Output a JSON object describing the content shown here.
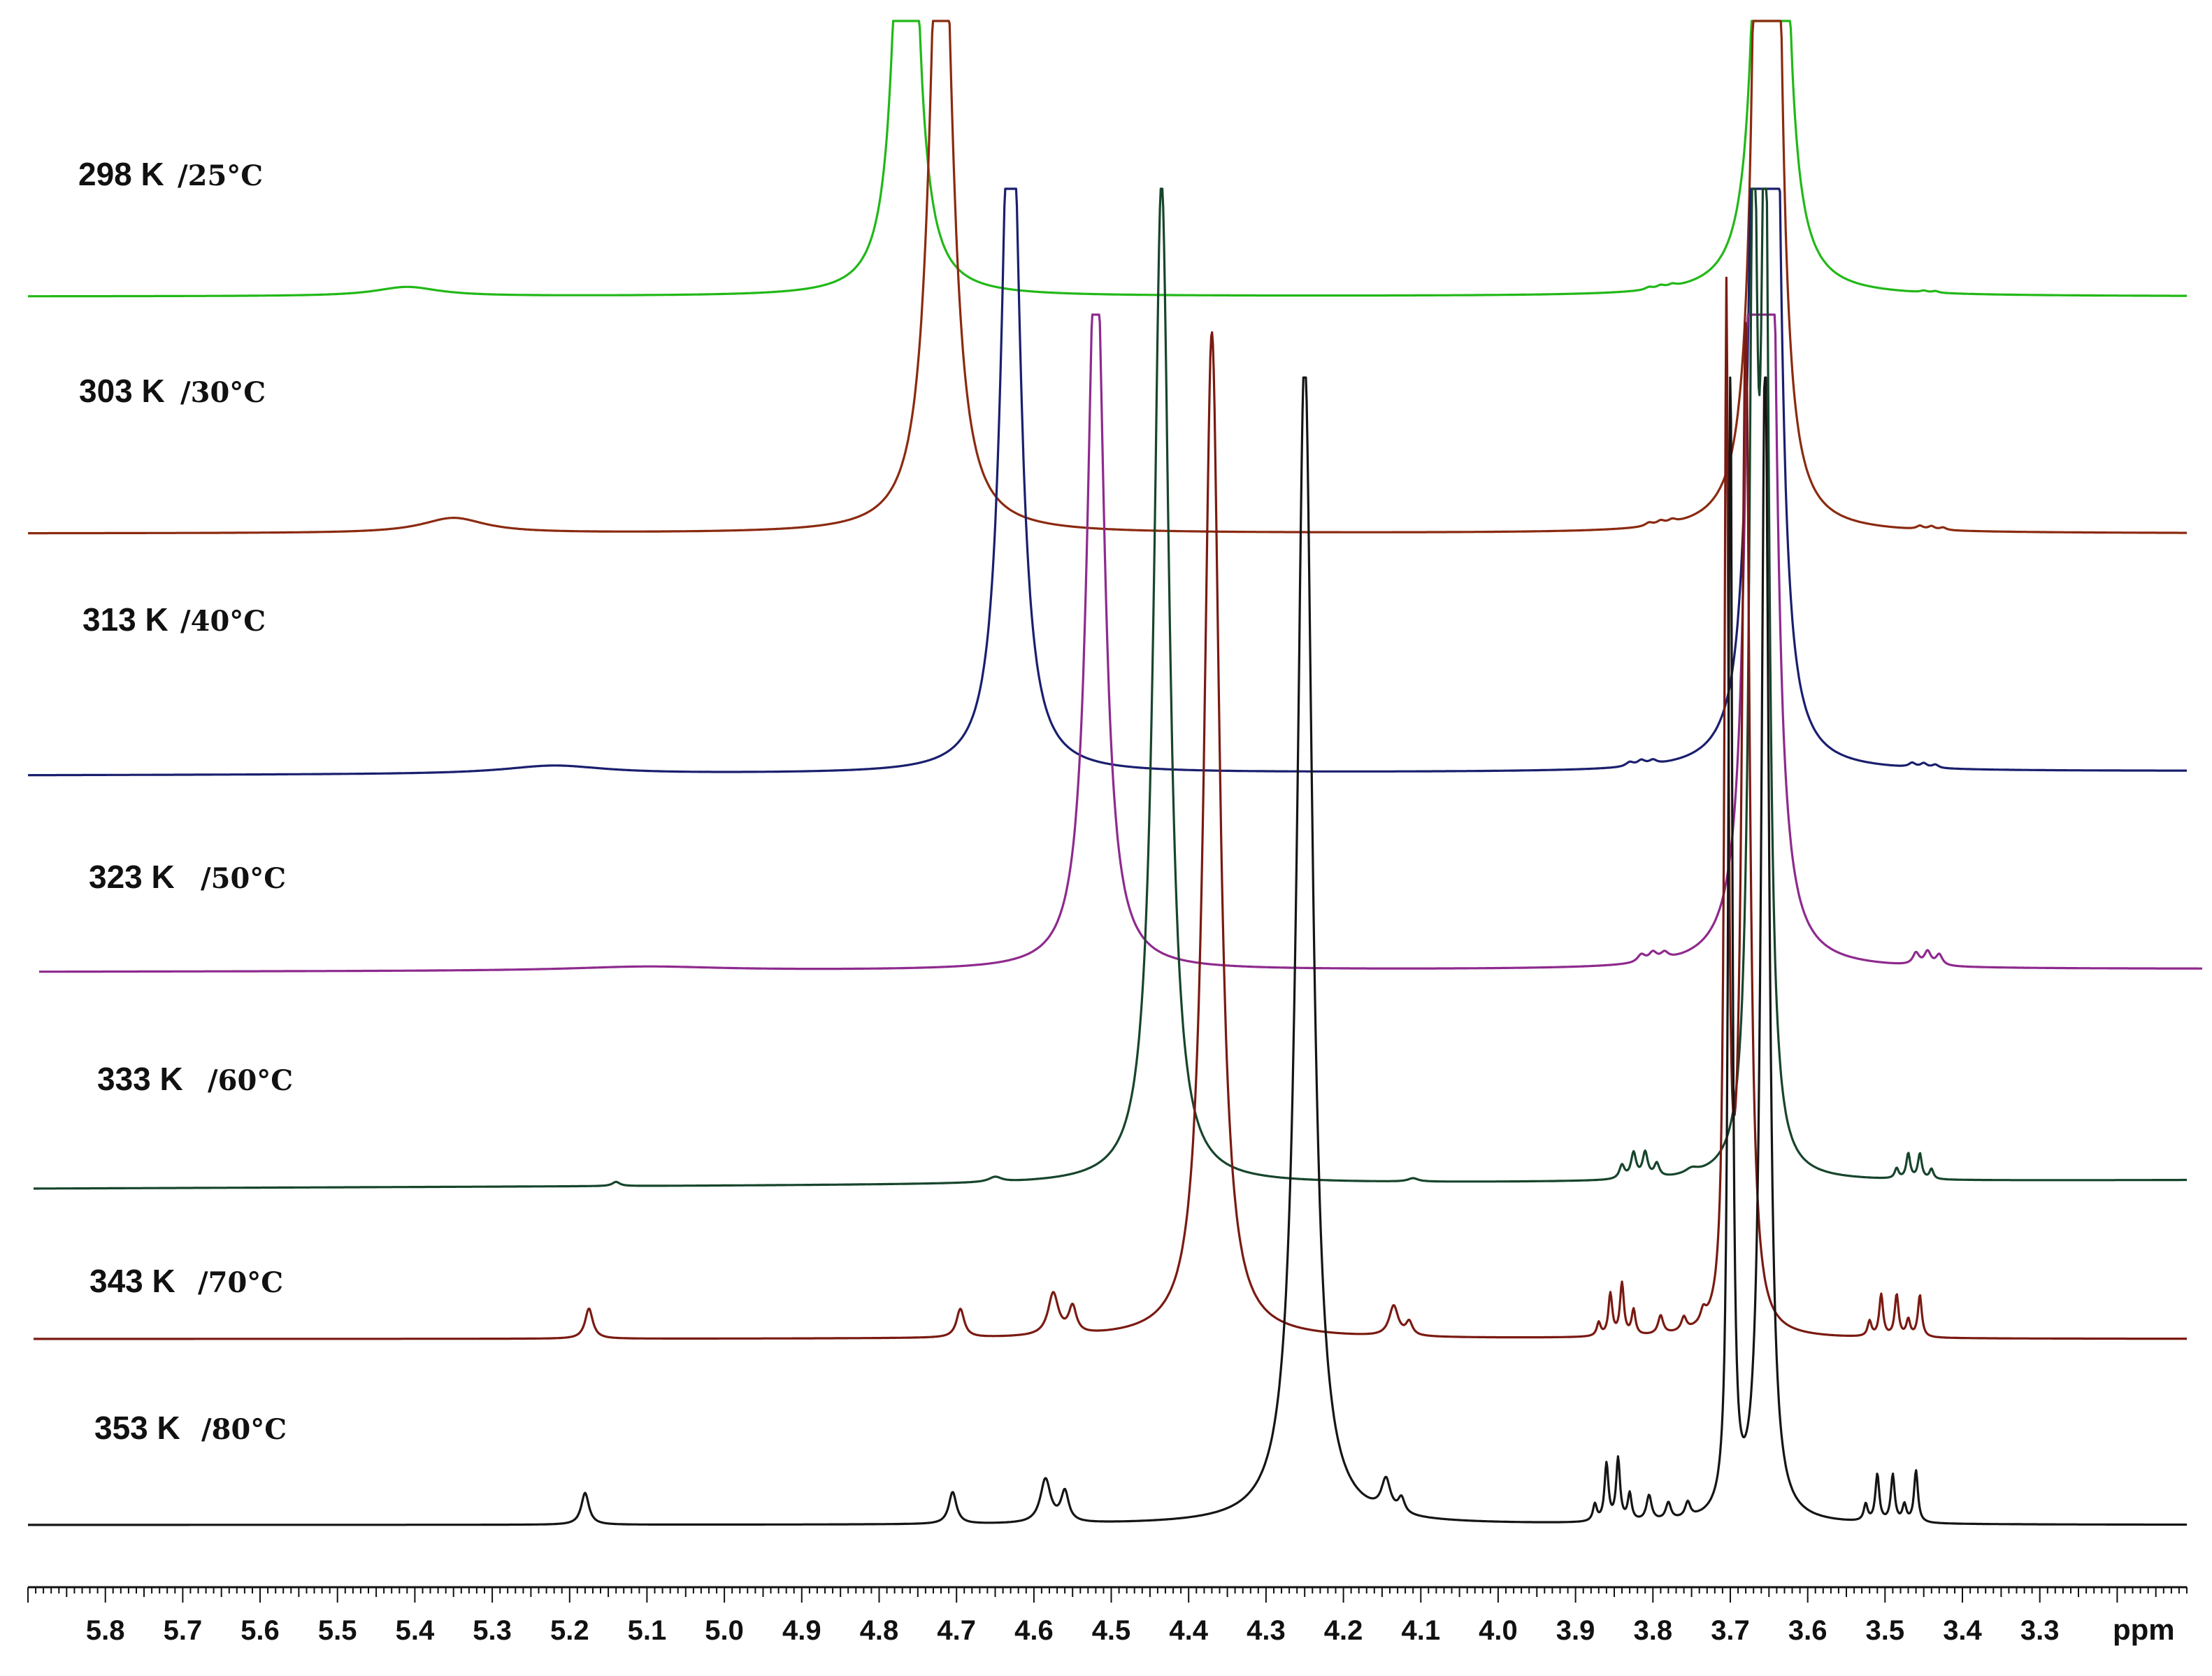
{
  "chart_data": {
    "type": "line",
    "title": "",
    "xlabel": "ppm",
    "ylabel": "",
    "xlim": [
      5.9,
      3.11
    ],
    "x_reversed": true,
    "grid": false,
    "legend": "temperature labels at left of each trace",
    "x_ticks": [
      "5.8",
      "5.7",
      "5.6",
      "5.5",
      "5.4",
      "5.3",
      "5.2",
      "5.1",
      "5.0",
      "4.9",
      "4.8",
      "4.7",
      "4.6",
      "4.5",
      "4.4",
      "4.3",
      "4.2",
      "4.1",
      "4.0",
      "3.9",
      "3.8",
      "3.7",
      "3.6",
      "3.5",
      "3.4",
      "3.3"
    ],
    "peak_height_unit": "relative intensity (offset stacked traces, tall peaks clipped)",
    "series": [
      {
        "name": "298 K",
        "label_k": "298 K",
        "label_c": "/25°C",
        "color": "#22b818",
        "peaks": [
          {
            "ppm": 5.41,
            "height": 0.11,
            "width": 0.05
          },
          {
            "ppm": 4.765,
            "height": 9.0,
            "width": 0.013
          },
          {
            "ppm": 3.805,
            "height": 0.03,
            "width": 0.006
          },
          {
            "ppm": 3.79,
            "height": 0.035,
            "width": 0.006
          },
          {
            "ppm": 3.775,
            "height": 0.03,
            "width": 0.006
          },
          {
            "ppm": 3.655,
            "height": 12.0,
            "width": 0.009
          },
          {
            "ppm": 3.64,
            "height": 12.0,
            "width": 0.009
          },
          {
            "ppm": 3.45,
            "height": 0.02,
            "width": 0.005
          },
          {
            "ppm": 3.435,
            "height": 0.02,
            "width": 0.005
          }
        ]
      },
      {
        "name": "303 K",
        "label_k": "303 K",
        "label_c": "/30°C",
        "color": "#8b2a10",
        "peaks": [
          {
            "ppm": 5.35,
            "height": 0.18,
            "width": 0.05
          },
          {
            "ppm": 4.72,
            "height": 9.0,
            "width": 0.016
          },
          {
            "ppm": 3.805,
            "height": 0.04,
            "width": 0.006
          },
          {
            "ppm": 3.79,
            "height": 0.045,
            "width": 0.006
          },
          {
            "ppm": 3.775,
            "height": 0.04,
            "width": 0.006
          },
          {
            "ppm": 3.66,
            "height": 12.0,
            "width": 0.009
          },
          {
            "ppm": 3.645,
            "height": 12.0,
            "width": 0.009
          },
          {
            "ppm": 3.455,
            "height": 0.04,
            "width": 0.005
          },
          {
            "ppm": 3.44,
            "height": 0.04,
            "width": 0.005
          },
          {
            "ppm": 3.425,
            "height": 0.03,
            "width": 0.005
          }
        ]
      },
      {
        "name": "313 K",
        "label_k": "313 K",
        "label_c": "/40°C",
        "color": "#1a1f6e",
        "peaks": [
          {
            "ppm": 5.22,
            "height": 0.1,
            "width": 0.08
          },
          {
            "ppm": 4.63,
            "height": 9.0,
            "width": 0.014
          },
          {
            "ppm": 3.83,
            "height": 0.05,
            "width": 0.006
          },
          {
            "ppm": 3.815,
            "height": 0.06,
            "width": 0.006
          },
          {
            "ppm": 3.8,
            "height": 0.05,
            "width": 0.006
          },
          {
            "ppm": 3.665,
            "height": 12.0,
            "width": 0.009
          },
          {
            "ppm": 3.645,
            "height": 12.0,
            "width": 0.009
          },
          {
            "ppm": 3.465,
            "height": 0.05,
            "width": 0.005
          },
          {
            "ppm": 3.45,
            "height": 0.05,
            "width": 0.005
          },
          {
            "ppm": 3.435,
            "height": 0.04,
            "width": 0.005
          }
        ]
      },
      {
        "name": "323 K",
        "label_k": "323 K",
        "label_c": "/50°C",
        "color": "#8e2a8e",
        "peaks": [
          {
            "ppm": 5.1,
            "height": 0.05,
            "width": 0.12
          },
          {
            "ppm": 4.52,
            "height": 9.0,
            "width": 0.013
          },
          {
            "ppm": 3.815,
            "height": 0.09,
            "width": 0.006
          },
          {
            "ppm": 3.8,
            "height": 0.1,
            "width": 0.006
          },
          {
            "ppm": 3.785,
            "height": 0.08,
            "width": 0.006
          },
          {
            "ppm": 3.67,
            "height": 12.0,
            "width": 0.009
          },
          {
            "ppm": 3.65,
            "height": 12.0,
            "width": 0.009
          },
          {
            "ppm": 3.46,
            "height": 0.14,
            "width": 0.005
          },
          {
            "ppm": 3.445,
            "height": 0.16,
            "width": 0.005
          },
          {
            "ppm": 3.43,
            "height": 0.13,
            "width": 0.005
          }
        ]
      },
      {
        "name": "333 K",
        "label_k": "333 K",
        "label_c": "/60°C",
        "color": "#17452c",
        "peaks": [
          {
            "ppm": 5.14,
            "height": 0.05,
            "width": 0.006
          },
          {
            "ppm": 4.65,
            "height": 0.06,
            "width": 0.01
          },
          {
            "ppm": 4.435,
            "height": 12.0,
            "width": 0.012
          },
          {
            "ppm": 4.11,
            "height": 0.04,
            "width": 0.008
          },
          {
            "ppm": 3.84,
            "height": 0.16,
            "width": 0.004
          },
          {
            "ppm": 3.825,
            "height": 0.3,
            "width": 0.004
          },
          {
            "ppm": 3.81,
            "height": 0.3,
            "width": 0.004
          },
          {
            "ppm": 3.795,
            "height": 0.16,
            "width": 0.004
          },
          {
            "ppm": 3.75,
            "height": 0.06,
            "width": 0.01
          },
          {
            "ppm": 3.67,
            "height": 12.0,
            "width": 0.006
          },
          {
            "ppm": 3.655,
            "height": 12.0,
            "width": 0.006
          },
          {
            "ppm": 3.485,
            "height": 0.12,
            "width": 0.003
          },
          {
            "ppm": 3.47,
            "height": 0.3,
            "width": 0.003
          },
          {
            "ppm": 3.455,
            "height": 0.3,
            "width": 0.003
          },
          {
            "ppm": 3.44,
            "height": 0.12,
            "width": 0.003
          }
        ]
      },
      {
        "name": "343 K",
        "label_k": "343 K",
        "label_c": "/70°C",
        "color": "#7a1a12",
        "peaks": [
          {
            "ppm": 5.175,
            "height": 0.36,
            "width": 0.006
          },
          {
            "ppm": 4.695,
            "height": 0.34,
            "width": 0.006
          },
          {
            "ppm": 4.575,
            "height": 0.5,
            "width": 0.008
          },
          {
            "ppm": 4.55,
            "height": 0.32,
            "width": 0.006
          },
          {
            "ppm": 4.37,
            "height": 12.0,
            "width": 0.012
          },
          {
            "ppm": 4.135,
            "height": 0.36,
            "width": 0.007
          },
          {
            "ppm": 4.115,
            "height": 0.16,
            "width": 0.005
          },
          {
            "ppm": 3.87,
            "height": 0.16,
            "width": 0.003
          },
          {
            "ppm": 3.855,
            "height": 0.5,
            "width": 0.003
          },
          {
            "ppm": 3.84,
            "height": 0.62,
            "width": 0.003
          },
          {
            "ppm": 3.825,
            "height": 0.3,
            "width": 0.003
          },
          {
            "ppm": 3.79,
            "height": 0.22,
            "width": 0.004
          },
          {
            "ppm": 3.76,
            "height": 0.16,
            "width": 0.004
          },
          {
            "ppm": 3.735,
            "height": 0.14,
            "width": 0.004
          },
          {
            "ppm": 3.705,
            "height": 12.0,
            "width": 0.003
          },
          {
            "ppm": 3.68,
            "height": 12.0,
            "width": 0.006
          },
          {
            "ppm": 3.52,
            "height": 0.18,
            "width": 0.003
          },
          {
            "ppm": 3.505,
            "height": 0.5,
            "width": 0.003
          },
          {
            "ppm": 3.485,
            "height": 0.5,
            "width": 0.003
          },
          {
            "ppm": 3.47,
            "height": 0.2,
            "width": 0.003
          },
          {
            "ppm": 3.455,
            "height": 0.5,
            "width": 0.003
          }
        ]
      },
      {
        "name": "353 K",
        "label_k": "353 K",
        "label_c": "/80°C",
        "color": "#151515",
        "peaks": [
          {
            "ppm": 5.18,
            "height": 0.38,
            "width": 0.006
          },
          {
            "ppm": 4.705,
            "height": 0.38,
            "width": 0.006
          },
          {
            "ppm": 4.585,
            "height": 0.52,
            "width": 0.008
          },
          {
            "ppm": 4.56,
            "height": 0.36,
            "width": 0.006
          },
          {
            "ppm": 4.25,
            "height": 14.0,
            "width": 0.012
          },
          {
            "ppm": 4.145,
            "height": 0.38,
            "width": 0.007
          },
          {
            "ppm": 4.125,
            "height": 0.18,
            "width": 0.005
          },
          {
            "ppm": 3.875,
            "height": 0.2,
            "width": 0.003
          },
          {
            "ppm": 3.86,
            "height": 0.68,
            "width": 0.003
          },
          {
            "ppm": 3.845,
            "height": 0.74,
            "width": 0.003
          },
          {
            "ppm": 3.83,
            "height": 0.32,
            "width": 0.003
          },
          {
            "ppm": 3.805,
            "height": 0.3,
            "width": 0.004
          },
          {
            "ppm": 3.78,
            "height": 0.2,
            "width": 0.004
          },
          {
            "ppm": 3.755,
            "height": 0.18,
            "width": 0.004
          },
          {
            "ppm": 3.7,
            "height": 14.0,
            "width": 0.003
          },
          {
            "ppm": 3.655,
            "height": 14.0,
            "width": 0.006
          },
          {
            "ppm": 3.525,
            "height": 0.2,
            "width": 0.003
          },
          {
            "ppm": 3.51,
            "height": 0.56,
            "width": 0.003
          },
          {
            "ppm": 3.49,
            "height": 0.56,
            "width": 0.003
          },
          {
            "ppm": 3.475,
            "height": 0.2,
            "width": 0.003
          },
          {
            "ppm": 3.46,
            "height": 0.62,
            "width": 0.003
          }
        ]
      }
    ]
  }
}
